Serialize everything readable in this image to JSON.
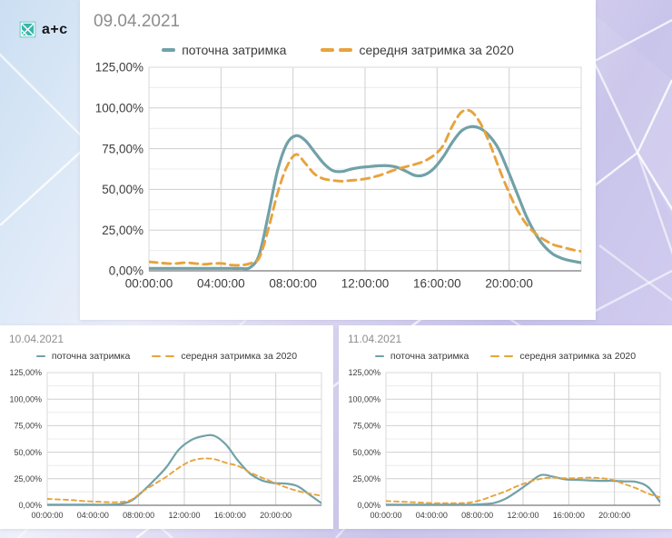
{
  "logo": {
    "text": "a+c",
    "icon_color": "#3ab5ac"
  },
  "colors": {
    "series_current": "#71a1a8",
    "series_avg2020": "#e7a33d",
    "grid_major": "#cfcfcf",
    "grid_minor": "#ececec",
    "axis_line": "#8f8f8f",
    "tick_text": "#3c3c3c"
  },
  "chart_data": [
    {
      "type": "line",
      "title": "09.04.2021",
      "x_tick_labels": [
        "00:00:00",
        "04:00:00",
        "08:00:00",
        "12:00:00",
        "16:00:00",
        "20:00:00"
      ],
      "x_tick_hours": [
        0,
        4,
        8,
        12,
        16,
        20
      ],
      "y_tick_labels": [
        "0,00%",
        "25,00%",
        "50,00%",
        "75,00%",
        "100,00%",
        "125,00%"
      ],
      "ylim": [
        0,
        125
      ],
      "grid": true,
      "legend_position": "top",
      "sample_interval_hours": 0.5,
      "series": [
        {
          "name": "поточна затримка",
          "color": "#71a1a8",
          "dash": "solid",
          "values": [
            1.5,
            1.5,
            1.5,
            1.5,
            1.5,
            1.5,
            1.5,
            1.5,
            1.5,
            1.5,
            1.5,
            2,
            10,
            35,
            62,
            78,
            83,
            80,
            73,
            66,
            61.5,
            61,
            62.5,
            63.5,
            64,
            64.5,
            64.5,
            63.5,
            61,
            58.5,
            59,
            63,
            70,
            79,
            86,
            88.5,
            87.5,
            83,
            75,
            62,
            48,
            34,
            23,
            15,
            10,
            7.5,
            6,
            5
          ]
        },
        {
          "name": "середня затримка за 2020",
          "color": "#e7a33d",
          "dash": "dashed",
          "values": [
            5.5,
            5,
            4.5,
            4.5,
            5,
            4.5,
            4,
            4.5,
            4.5,
            3.5,
            3.5,
            4.5,
            8,
            26,
            48,
            64,
            71.5,
            66,
            59.5,
            56.5,
            55.5,
            55,
            55.5,
            56,
            57,
            58.5,
            60.5,
            62.5,
            64,
            65.5,
            67.5,
            71,
            77,
            89,
            97.5,
            98,
            91,
            79,
            64,
            50,
            38,
            29,
            23,
            19,
            16,
            14.5,
            13,
            12
          ]
        }
      ]
    },
    {
      "type": "line",
      "title": "10.04.2021",
      "x_tick_labels": [
        "00:00:00",
        "04:00:00",
        "08:00:00",
        "12:00:00",
        "16:00:00",
        "20:00:00"
      ],
      "x_tick_hours": [
        0,
        4,
        8,
        12,
        16,
        20
      ],
      "y_tick_labels": [
        "0,00%",
        "25,00%",
        "50,00%",
        "75,00%",
        "100,00%",
        "125,00%"
      ],
      "ylim": [
        0,
        125
      ],
      "grid": true,
      "legend_position": "top",
      "sample_interval_hours": 1,
      "series": [
        {
          "name": "поточна затримка",
          "color": "#71a1a8",
          "dash": "solid",
          "values": [
            0.5,
            0.5,
            0.5,
            0.5,
            0.5,
            0.5,
            1,
            4,
            13,
            24,
            36,
            52,
            61,
            65,
            65.5,
            57,
            42,
            30,
            23.5,
            21,
            20.5,
            18,
            10,
            2
          ]
        },
        {
          "name": "середня затримка за 2020",
          "color": "#e7a33d",
          "dash": "dashed",
          "values": [
            6,
            5.5,
            5,
            4,
            3.5,
            3,
            3,
            5,
            13,
            20,
            27,
            35,
            41.5,
            44,
            43.5,
            40,
            37,
            31,
            26,
            21.5,
            17,
            13.5,
            11,
            9
          ]
        }
      ]
    },
    {
      "type": "line",
      "title": "11.04.2021",
      "x_tick_labels": [
        "00:00:00",
        "04:00:00",
        "08:00:00",
        "12:00:00",
        "16:00:00",
        "20:00:00"
      ],
      "x_tick_hours": [
        0,
        4,
        8,
        12,
        16,
        20
      ],
      "y_tick_labels": [
        "0,00%",
        "25,00%",
        "50,00%",
        "75,00%",
        "100,00%",
        "125,00%"
      ],
      "ylim": [
        0,
        125
      ],
      "grid": true,
      "legend_position": "top",
      "sample_interval_hours": 1,
      "series": [
        {
          "name": "поточна затримка",
          "color": "#71a1a8",
          "dash": "solid",
          "values": [
            0.5,
            0.5,
            0.5,
            0.5,
            0.5,
            0.5,
            0.5,
            0.5,
            1,
            2,
            6,
            13,
            21,
            28.5,
            27,
            24.5,
            24,
            23.5,
            23,
            23,
            22.5,
            22,
            17,
            3
          ]
        },
        {
          "name": "середня затримка за 2020",
          "color": "#e7a33d",
          "dash": "dashed",
          "values": [
            4,
            3.5,
            3,
            2.5,
            2,
            2,
            2,
            2.5,
            5,
            9,
            13,
            18,
            22,
            25,
            26,
            25.5,
            25.5,
            26,
            25.5,
            24,
            20,
            16,
            11,
            7.5
          ]
        }
      ]
    }
  ]
}
